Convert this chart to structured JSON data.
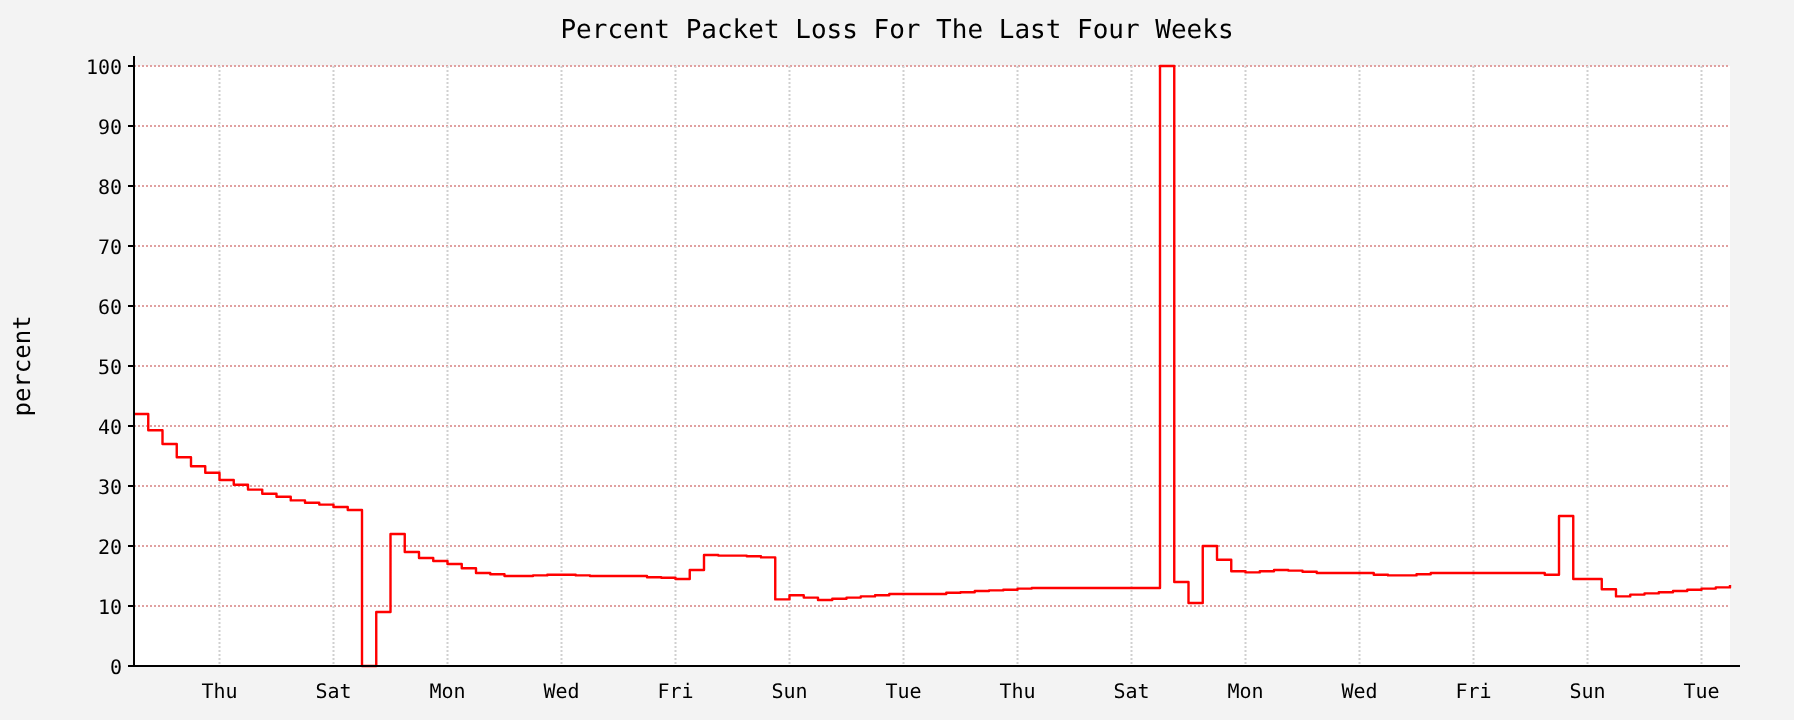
{
  "chart_data": {
    "type": "step",
    "title": "Percent Packet Loss For The Last Four Weeks",
    "ylabel": "percent",
    "categories": [
      null,
      null,
      null,
      null,
      null,
      null,
      "Thu",
      null,
      null,
      null,
      null,
      null,
      null,
      null,
      "Sat",
      null,
      null,
      null,
      null,
      null,
      null,
      null,
      "Mon",
      null,
      null,
      null,
      null,
      null,
      null,
      null,
      "Wed",
      null,
      null,
      null,
      null,
      null,
      null,
      null,
      "Fri",
      null,
      null,
      null,
      null,
      null,
      null,
      null,
      "Sun",
      null,
      null,
      null,
      null,
      null,
      null,
      null,
      "Tue",
      null,
      null,
      null,
      null,
      null,
      null,
      null,
      "Thu",
      null,
      null,
      null,
      null,
      null,
      null,
      null,
      "Sat",
      null,
      null,
      null,
      null,
      null,
      null,
      null,
      "Mon",
      null,
      null,
      null,
      null,
      null,
      null,
      null,
      "Wed",
      null,
      null,
      null,
      null,
      null,
      null,
      null,
      "Fri",
      null,
      null,
      null,
      null,
      null,
      null,
      null,
      "Sun",
      null,
      null,
      null,
      null,
      null,
      null,
      null,
      "Tue",
      null,
      null
    ],
    "series": [
      {
        "color": "#ff0000",
        "values": [
          42,
          39.3,
          37,
          34.8,
          33.3,
          32.2,
          31,
          30.2,
          29.4,
          28.7,
          28.2,
          27.6,
          27.2,
          26.9,
          26.5,
          26,
          0,
          9,
          22,
          19,
          18,
          17.5,
          17,
          16.3,
          15.5,
          15.3,
          15,
          15,
          15.1,
          15.2,
          15.2,
          15.1,
          15,
          15,
          15,
          15,
          14.8,
          14.7,
          14.5,
          16,
          18.5,
          18.4,
          18.4,
          18.3,
          18.1,
          11.1,
          11.8,
          11.4,
          11,
          11.2,
          11.4,
          11.6,
          11.8,
          12,
          12,
          12,
          12,
          12.2,
          12.3,
          12.5,
          12.6,
          12.7,
          12.9,
          13,
          13,
          13,
          13,
          13,
          13,
          13,
          13,
          13,
          100,
          14,
          10.5,
          20,
          17.7,
          15.8,
          15.6,
          15.8,
          16,
          15.9,
          15.7,
          15.5,
          15.5,
          15.5,
          15.5,
          15.2,
          15.1,
          15.1,
          15.3,
          15.5,
          15.5,
          15.5,
          15.5,
          15.5,
          15.5,
          15.5,
          15.5,
          15.2,
          25,
          14.5,
          14.5,
          12.8,
          11.6,
          11.9,
          12.1,
          12.3,
          12.5,
          12.7,
          12.9,
          13.1,
          13.5
        ]
      }
    ],
    "ylim": [
      0,
      100
    ],
    "yticks": [
      0,
      10,
      20,
      30,
      40,
      50,
      60,
      70,
      80,
      90,
      100
    ],
    "grid": true
  }
}
